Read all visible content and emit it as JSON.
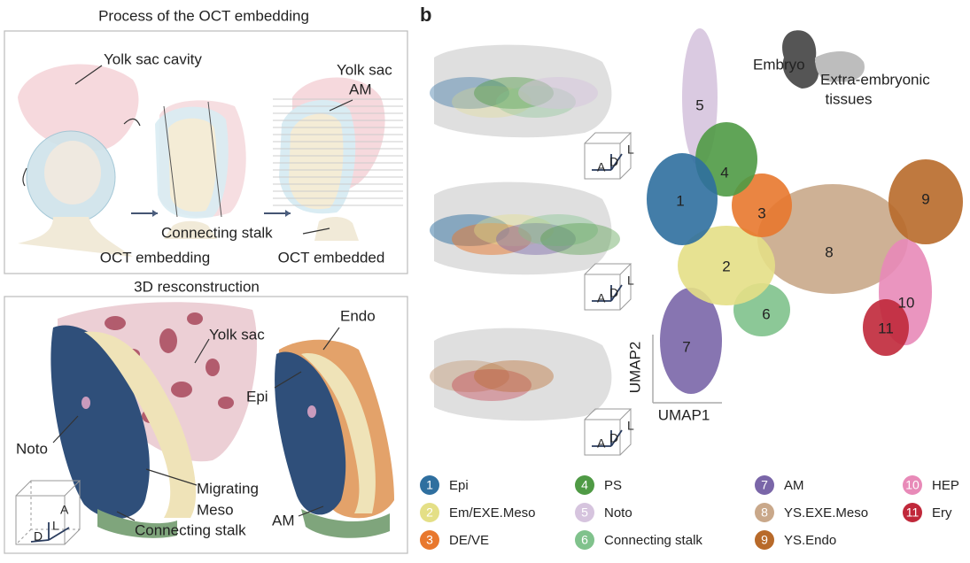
{
  "panel_a": {
    "embedding": {
      "title": "Process of the OCT embedding",
      "yolk_sac_cavity": "Yolk sac cavity",
      "yolk_sac": "Yolk sac",
      "am": "AM",
      "connecting_stalk": "Connecting stalk",
      "step_1": "OCT embedding",
      "step_2": "OCT embedded"
    },
    "reconstruction": {
      "title": "3D resconstruction",
      "yolk_sac": "Yolk sac",
      "endo": "Endo",
      "epi": "Epi",
      "noto": "Noto",
      "migrating_meso": [
        "Migrating",
        "Meso"
      ],
      "connecting_stalk": "Connecting stalk",
      "am": "AM",
      "axes": [
        "A",
        "L",
        "D"
      ]
    }
  },
  "panel_b": {
    "label": "b",
    "cube_axes": [
      [
        "L",
        "A",
        "D"
      ],
      [
        "L",
        "A",
        "D"
      ],
      [
        "L",
        "A",
        "D"
      ]
    ],
    "inset": [
      "Embryo",
      "Extra-embryonic",
      "tissues"
    ],
    "umap_axes": [
      "UMAP1",
      "UMAP2"
    ],
    "clusters": [
      {
        "number": 1,
        "name": "Epi",
        "color": "#2f6f9f"
      },
      {
        "number": 2,
        "name": "Em/EXE.Meso",
        "color": "#e4df86"
      },
      {
        "number": 3,
        "name": "DE/VE",
        "color": "#e8782e"
      },
      {
        "number": 4,
        "name": "PS",
        "color": "#4f9a45"
      },
      {
        "number": 5,
        "name": "Noto",
        "color": "#d6c4de"
      },
      {
        "number": 6,
        "name": "Connecting stalk",
        "color": "#80c28c"
      },
      {
        "number": 7,
        "name": "AM",
        "color": "#7a66a8"
      },
      {
        "number": 8,
        "name": "YS.EXE.Meso",
        "color": "#c9a88a"
      },
      {
        "number": 9,
        "name": "YS.Endo",
        "color": "#b86a2a"
      },
      {
        "number": 10,
        "name": "HEP",
        "color": "#e88ab8"
      },
      {
        "number": 11,
        "name": "Ery",
        "color": "#c0283a"
      }
    ]
  }
}
